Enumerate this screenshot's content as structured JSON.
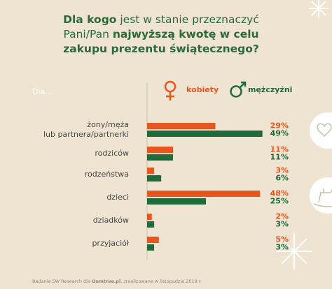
{
  "chart_data": {
    "type": "hbar",
    "title": [
      {
        "text": "Dla kogo",
        "bold": true
      },
      {
        "text": " jest w stanie przeznaczyć Pani/Pan ",
        "bold": false
      },
      {
        "text": "najwyższą kwotę w celu zakupu prezentu świątecznego?",
        "bold": true
      }
    ],
    "axis_label": "Dla...",
    "categories": [
      "żony/męża\nlub partnera/partnerki",
      "rodziców",
      "rodzeństwa",
      "dzieci",
      "dziadków",
      "przyjaciół"
    ],
    "series": [
      {
        "name": "kobiety",
        "color": "#e8561f",
        "values": [
          29,
          11,
          3,
          48,
          2,
          5
        ],
        "value_labels": [
          "29%",
          "11%",
          "3%",
          "48%",
          "2%",
          "5%"
        ]
      },
      {
        "name": "mężczyźni",
        "color": "#1f6b3b",
        "values": [
          49,
          11,
          6,
          25,
          3,
          3
        ],
        "value_labels": [
          "49%",
          "11%",
          "6%",
          "25%",
          "3%",
          "3%"
        ]
      }
    ],
    "xlim": [
      0,
      50
    ],
    "source": [
      {
        "text": "Badanie SW Research dla ",
        "bold": false
      },
      {
        "text": "Gumtree.pl",
        "bold": true
      },
      {
        "text": ", zrealizowane w listopadzie 2019 r.",
        "bold": false
      }
    ]
  }
}
